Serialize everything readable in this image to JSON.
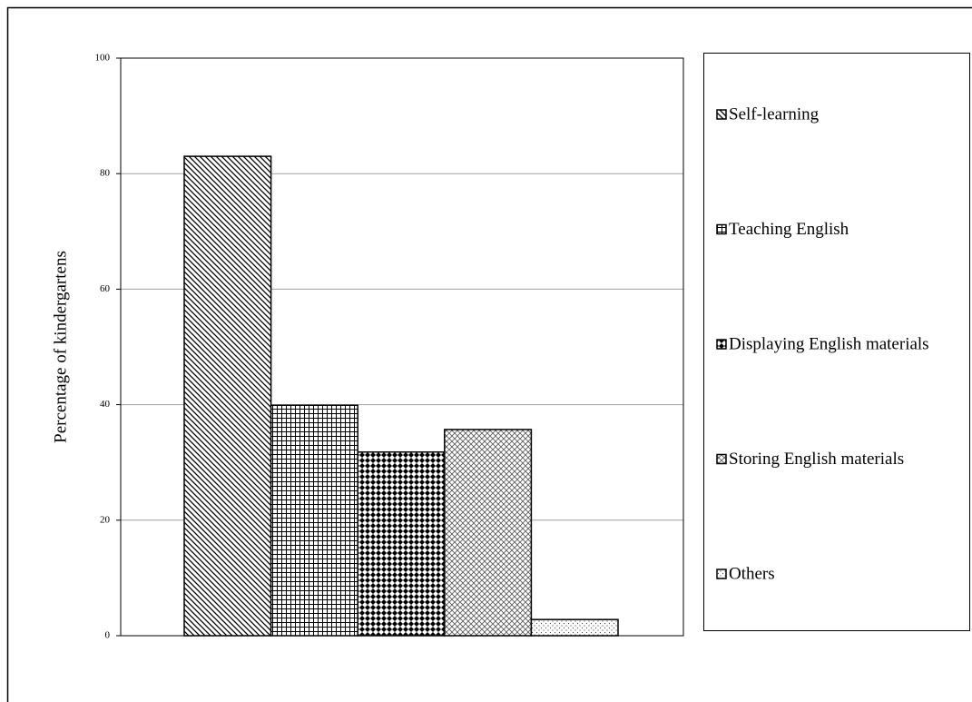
{
  "chart_data": {
    "type": "bar",
    "y_label": "Percentage of kindergartens",
    "series": [
      {
        "name": "Self-learning",
        "color": "#000000",
        "pattern": "diagonal",
        "values": [
          83.0
        ]
      },
      {
        "name": "Teaching English",
        "color": "#000000",
        "pattern": "grid",
        "values": [
          39.9
        ]
      },
      {
        "name": "Displaying English materials",
        "color": "#000000",
        "pattern": "checker",
        "values": [
          31.8
        ]
      },
      {
        "name": "Storing English materials",
        "color": "#000000",
        "pattern": "weave",
        "values": [
          35.7
        ]
      },
      {
        "name": "Others",
        "color": "#000000",
        "pattern": "dots",
        "values": [
          2.8
        ]
      }
    ],
    "ylim": [
      0,
      100
    ],
    "yticks": [
      0,
      20,
      40,
      60,
      80,
      100
    ],
    "grid": true,
    "legend": "right"
  }
}
